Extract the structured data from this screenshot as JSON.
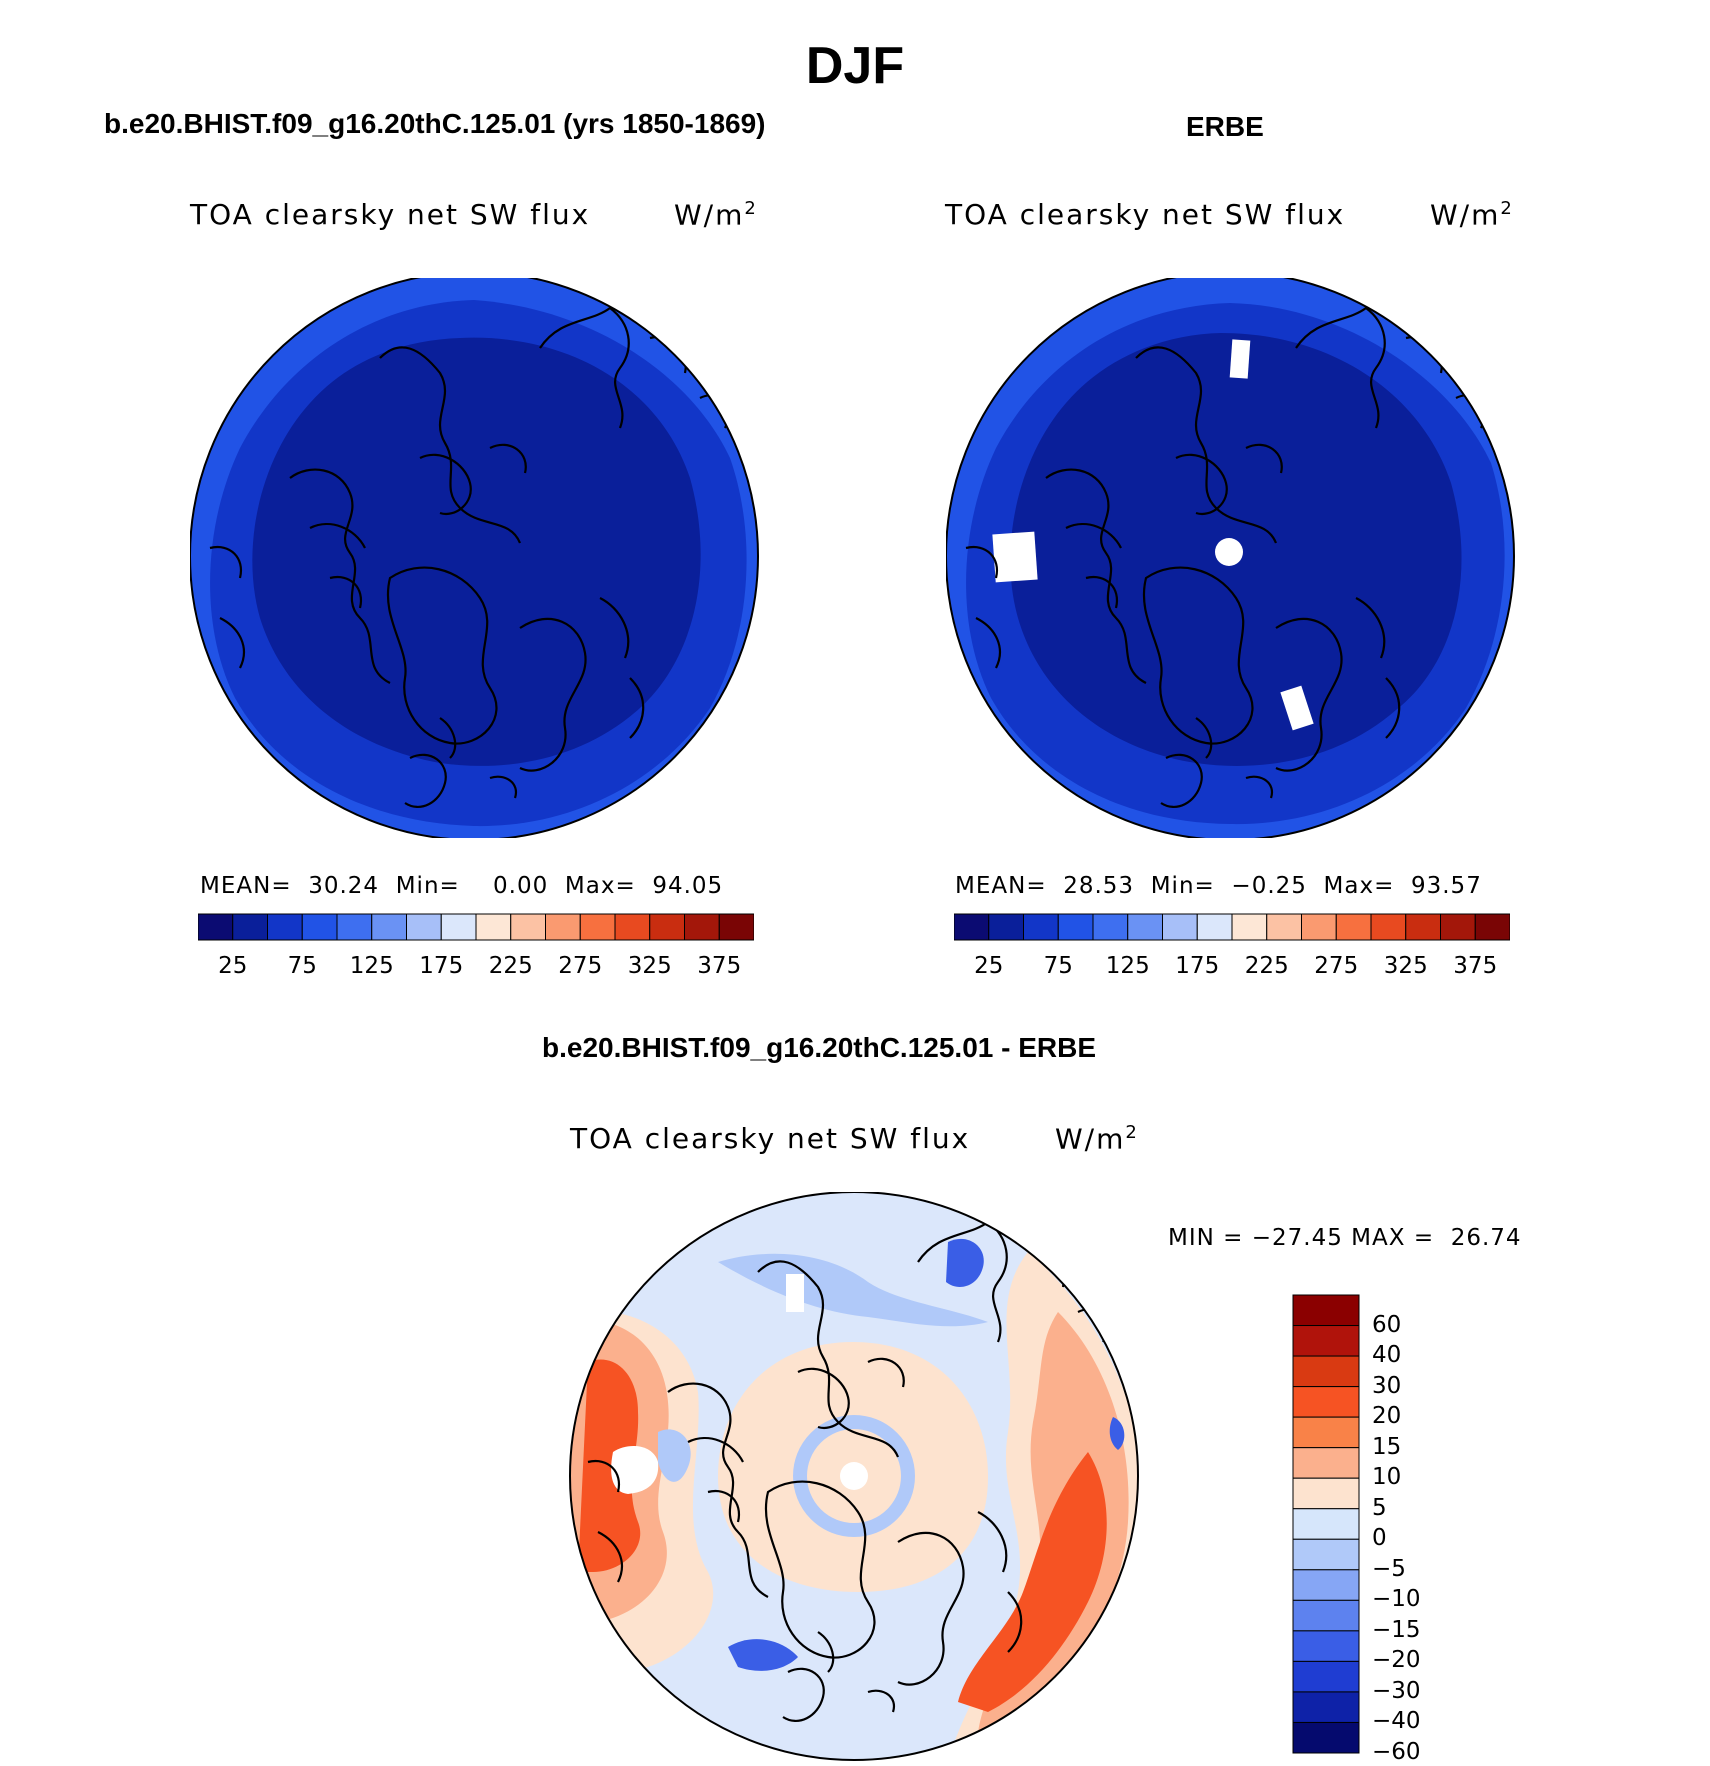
{
  "figure": {
    "title": "DJF"
  },
  "panel_model": {
    "case_title": "b.e20.BHIST.f09_g16.20thC.125.01 (yrs 1850-1869)",
    "variable": "TOA clearsky net SW flux",
    "units": "W/m",
    "units_sup": "2",
    "mean_label": "MEAN=",
    "mean_value": "30.24",
    "min_label": "Min=",
    "min_value": "0.00",
    "max_label": "Max=",
    "max_value": "94.05"
  },
  "panel_obs": {
    "case_title": "ERBE",
    "variable": "TOA clearsky net SW flux",
    "units": "W/m",
    "units_sup": "2",
    "mean_label": "MEAN=",
    "mean_value": "28.53",
    "min_label": "Min=",
    "min_value": "−0.25",
    "max_label": "Max=",
    "max_value": "93.57"
  },
  "panel_diff": {
    "case_title": "b.e20.BHIST.f09_g16.20thC.125.01 - ERBE",
    "variable": "TOA clearsky net SW flux",
    "units": "W/m",
    "units_sup": "2",
    "min_label": "MIN =",
    "min_value": "−27.45",
    "max_label": "MAX =",
    "max_value": "26.74"
  },
  "colorbar_abs": {
    "colors": [
      "#0b0b72",
      "#0a1f9a",
      "#1236c8",
      "#2153e6",
      "#3e6ff0",
      "#6a92f4",
      "#a7bff8",
      "#dbe7fb",
      "#fde7d6",
      "#fcc2a4",
      "#fa9a70",
      "#f7703f",
      "#e84a20",
      "#c92d10",
      "#a3170a",
      "#7a0505"
    ],
    "labels": [
      "25",
      "75",
      "125",
      "175",
      "225",
      "275",
      "325",
      "375"
    ]
  },
  "colorbar_diff": {
    "colors": [
      "#8b0000",
      "#b0130b",
      "#d93a12",
      "#f65323",
      "#f98248",
      "#fbb08d",
      "#fde3cf",
      "#d6e6fb",
      "#b0c9f9",
      "#86a6f5",
      "#5d82ef",
      "#3a5ee6",
      "#1f3dd2",
      "#0e22a8",
      "#050a6e"
    ],
    "labels": [
      "60",
      "40",
      "30",
      "20",
      "15",
      "10",
      "5",
      "0",
      "−5",
      "−10",
      "−15",
      "−20",
      "−30",
      "−40",
      "−60"
    ]
  },
  "map_colors": {
    "abs_outer": "#2153e6",
    "abs_mid": "#1236c8",
    "abs_inner": "#0a1f9a",
    "diff_base": "#dbe7fb",
    "diff_pos_light": "#fde3cf",
    "diff_pos_mid": "#fbb08d",
    "diff_pos_strong": "#f65323",
    "diff_neg_light": "#b0c9f9",
    "diff_neg_strong": "#3a5ee6",
    "missing": "#ffffff",
    "coast": "#000000"
  }
}
